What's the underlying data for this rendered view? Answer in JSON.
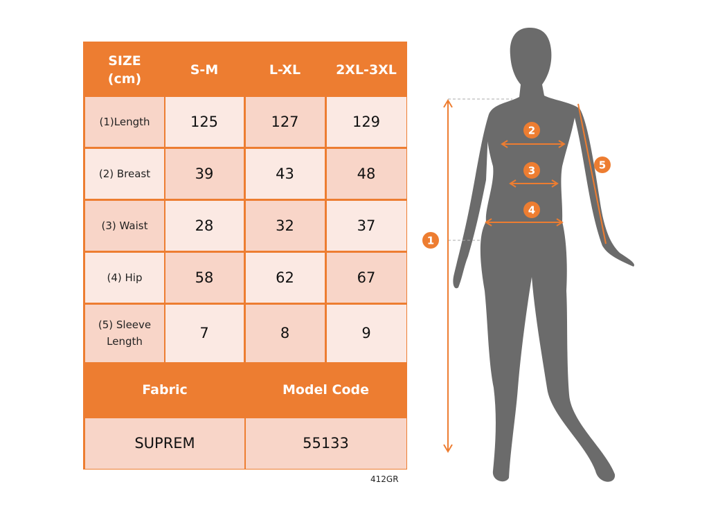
{
  "table": {
    "header": [
      "SIZE\n(cm)",
      "S-M",
      "L-XL",
      "2XL-3XL"
    ],
    "rows": [
      {
        "label": "(1)Length",
        "values": [
          "125",
          "127",
          "129"
        ]
      },
      {
        "label": "(2) Breast",
        "values": [
          "39",
          "43",
          "48"
        ]
      },
      {
        "label": "(3) Waist",
        "values": [
          "28",
          "32",
          "37"
        ]
      },
      {
        "label": "(4) Hip",
        "values": [
          "58",
          "62",
          "67"
        ]
      },
      {
        "label": "(5) Sleeve\nLength",
        "values": [
          "7",
          "8",
          "9"
        ]
      }
    ],
    "footer_headers": [
      "Fabric",
      "Model Code"
    ],
    "footer_values": [
      "SUPREM",
      "55133"
    ]
  },
  "code": "412GR",
  "figure": {
    "markers": [
      "1",
      "2",
      "3",
      "4",
      "5"
    ]
  },
  "colors": {
    "accent": "#ED7D31",
    "row_dark": "#F8D5C8",
    "row_light": "#FBE9E3",
    "silhouette": "#6B6B6B"
  }
}
